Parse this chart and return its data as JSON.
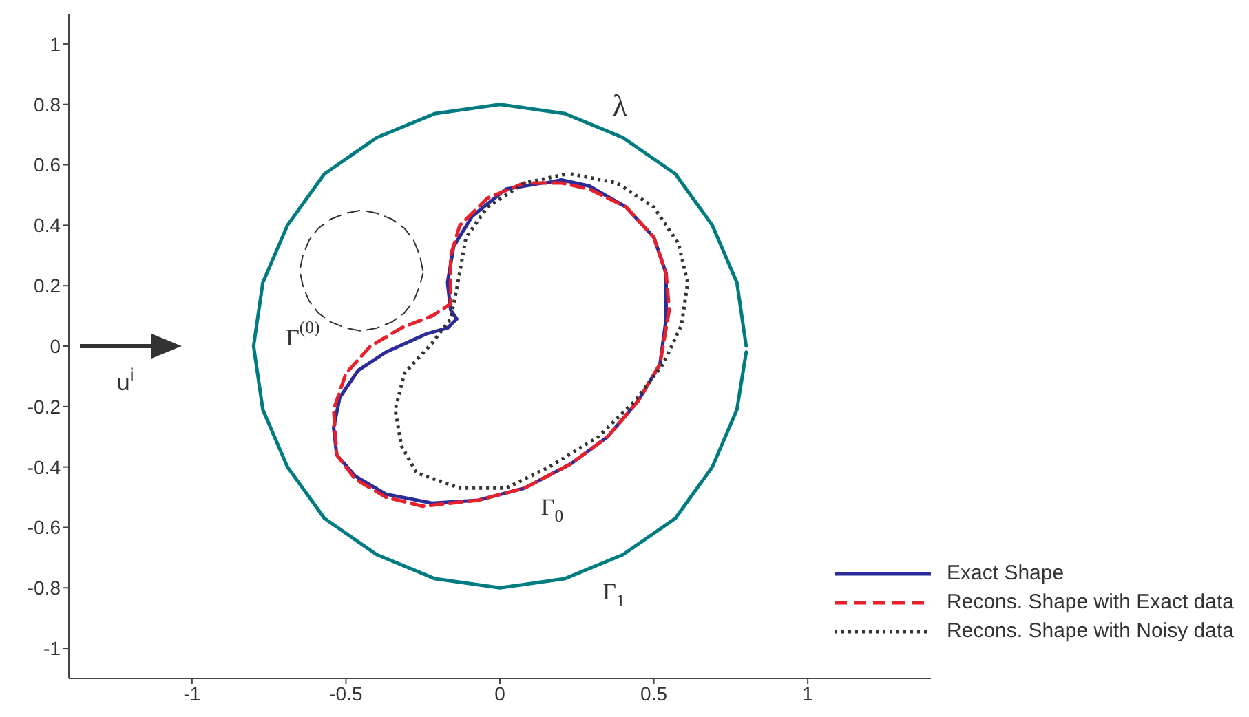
{
  "chart_data": {
    "type": "line",
    "xlim": [
      -1.4,
      1.4
    ],
    "ylim": [
      -1.1,
      1.1
    ],
    "xticks": [
      -1,
      -0.5,
      0,
      0.5,
      1
    ],
    "yticks": [
      -1,
      -0.8,
      -0.6,
      -0.4,
      -0.2,
      0,
      0.2,
      0.4,
      0.6,
      0.8,
      1
    ],
    "grid": false,
    "legend": "bottom right",
    "marker": "none",
    "annotations": [
      "λ",
      "Γ$^{(0)}$",
      "Γ$_{0}$",
      "Γ$_{1}$",
      "u$^{i}$"
    ],
    "series": [
      {
        "color": "#007b80",
        "line_style": "solid",
        "x": [
          0.8,
          0.77,
          0.69,
          0.57,
          0.4,
          0.21,
          0,
          -0.21,
          -0.4,
          -0.57,
          -0.69,
          -0.77,
          -0.8,
          -0.77,
          -0.69,
          -0.57,
          -0.4,
          -0.21,
          0,
          0.21,
          0.4,
          0.57,
          0.69,
          0.77,
          0.8
        ],
        "values": [
          0,
          0.21,
          0.4,
          0.57,
          0.69,
          0.77,
          0.8,
          0.77,
          0.69,
          0.57,
          0.4,
          0.21,
          0,
          -0.21,
          -0.4,
          -0.57,
          -0.69,
          -0.77,
          -0.8,
          -0.77,
          -0.69,
          -0.57,
          -0.4,
          -0.21,
          -0.02
        ]
      },
      {
        "color": "#333333",
        "line_style": "dashed",
        "x": [
          -0.25,
          -0.26,
          -0.28,
          -0.31,
          -0.35,
          -0.4,
          -0.45,
          -0.5,
          -0.55,
          -0.59,
          -0.62,
          -0.64,
          -0.65,
          -0.64,
          -0.62,
          -0.59,
          -0.55,
          -0.5,
          -0.45,
          -0.4,
          -0.35,
          -0.31,
          -0.28,
          -0.26,
          -0.25
        ],
        "values": [
          0.25,
          0.3,
          0.35,
          0.39,
          0.42,
          0.44,
          0.45,
          0.44,
          0.42,
          0.39,
          0.35,
          0.3,
          0.25,
          0.2,
          0.15,
          0.11,
          0.08,
          0.06,
          0.05,
          0.06,
          0.08,
          0.11,
          0.15,
          0.2,
          0.24
        ]
      },
      {
        "name": "Exact Shape",
        "color": "#2b2b9a",
        "line_style": "solid",
        "x": [
          0.14,
          0.02,
          -0.09,
          -0.15,
          -0.17,
          -0.16,
          -0.14,
          -0.17,
          -0.24,
          -0.37,
          -0.46,
          -0.52,
          -0.54,
          -0.53,
          -0.47,
          -0.37,
          -0.22,
          -0.07,
          0.08,
          0.23,
          0.35,
          0.45,
          0.52,
          0.54,
          0.54,
          0.5,
          0.41,
          0.29,
          0.2,
          0.15
        ],
        "values": [
          0.54,
          0.52,
          0.43,
          0.33,
          0.21,
          0.12,
          0.09,
          0.06,
          0.04,
          -0.02,
          -0.08,
          -0.17,
          -0.27,
          -0.36,
          -0.43,
          -0.49,
          -0.52,
          -0.51,
          -0.47,
          -0.39,
          -0.3,
          -0.18,
          -0.06,
          0.09,
          0.24,
          0.36,
          0.46,
          0.53,
          0.55,
          0.54
        ]
      },
      {
        "name": "Recons. Shape with Exact data",
        "color": "#e8202a",
        "line_style": "dashed",
        "x": [
          0.08,
          -0.04,
          -0.13,
          -0.16,
          -0.16,
          -0.22,
          -0.32,
          -0.42,
          -0.5,
          -0.54,
          -0.53,
          -0.47,
          -0.37,
          -0.25,
          -0.07,
          0.08,
          0.23,
          0.35,
          0.45,
          0.52,
          0.55,
          0.54,
          0.5,
          0.41,
          0.29,
          0.2,
          0.09
        ],
        "values": [
          0.54,
          0.49,
          0.4,
          0.3,
          0.14,
          0.1,
          0.06,
          0,
          -0.09,
          -0.21,
          -0.36,
          -0.44,
          -0.5,
          -0.53,
          -0.51,
          -0.47,
          -0.39,
          -0.3,
          -0.18,
          -0.06,
          0.12,
          0.24,
          0.36,
          0.46,
          0.52,
          0.54,
          0.54
        ]
      },
      {
        "name": "Recons. Shape with Noisy data",
        "color": "#333333",
        "line_style": "dotted",
        "x": [
          0.23,
          0.38,
          0.5,
          0.58,
          0.61,
          0.59,
          0.53,
          0.44,
          0.32,
          0.16,
          0.02,
          -0.13,
          -0.27,
          -0.32,
          -0.34,
          -0.31,
          -0.22,
          -0.16,
          -0.14,
          -0.11,
          -0.04,
          0.08,
          0.22
        ],
        "values": [
          0.57,
          0.54,
          0.46,
          0.34,
          0.21,
          0.07,
          -0.06,
          -0.18,
          -0.3,
          -0.4,
          -0.47,
          -0.47,
          -0.42,
          -0.33,
          -0.21,
          -0.09,
          0.01,
          0.09,
          0.19,
          0.36,
          0.46,
          0.54,
          0.57
        ]
      }
    ]
  }
}
